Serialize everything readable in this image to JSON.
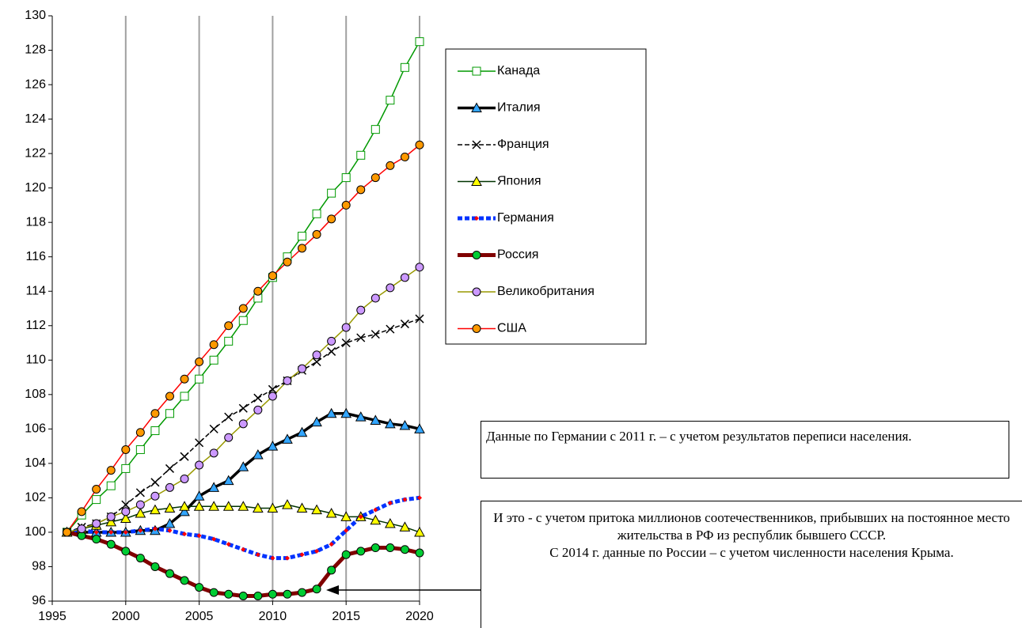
{
  "chart_data": {
    "type": "line",
    "x": [
      1996,
      1997,
      1998,
      1999,
      2000,
      2001,
      2002,
      2003,
      2004,
      2005,
      2006,
      2007,
      2008,
      2009,
      2010,
      2011,
      2012,
      2013,
      2014,
      2015,
      2016,
      2017,
      2018,
      2019,
      2020
    ],
    "xlim": [
      1995,
      2020
    ],
    "xticks": [
      1995,
      2000,
      2005,
      2010,
      2015,
      2020
    ],
    "ylim": [
      96,
      130
    ],
    "yticks": [
      96,
      98,
      100,
      102,
      104,
      106,
      108,
      110,
      112,
      114,
      116,
      118,
      120,
      122,
      124,
      126,
      128,
      130
    ],
    "grid": "x",
    "series": [
      {
        "name": "Канада",
        "color": "#009900",
        "marker": "square",
        "marker_color": "#ffffff",
        "dash": false,
        "values": [
          100,
          101.0,
          101.9,
          102.7,
          103.7,
          104.8,
          105.9,
          106.9,
          107.9,
          108.9,
          110.0,
          111.1,
          112.3,
          113.6,
          114.8,
          116.0,
          117.2,
          118.5,
          119.7,
          120.6,
          121.9,
          123.4,
          125.1,
          127.0,
          128.5
        ]
      },
      {
        "name": "Италия",
        "color": "#000000",
        "marker": "triangle",
        "marker_color": "#33a6ff",
        "dash": false,
        "values": [
          100,
          100.0,
          100.0,
          100.0,
          100.0,
          100.1,
          100.1,
          100.5,
          101.2,
          102.1,
          102.6,
          103.0,
          103.8,
          104.5,
          105.0,
          105.4,
          105.8,
          106.4,
          106.9,
          106.9,
          106.7,
          106.5,
          106.3,
          106.2,
          106.0
        ]
      },
      {
        "name": "Франция",
        "color": "#000000",
        "marker": "x",
        "marker_color": "#000000",
        "dash": true,
        "values": [
          100,
          100.3,
          100.5,
          100.9,
          101.6,
          102.3,
          102.9,
          103.7,
          104.4,
          105.2,
          106.0,
          106.7,
          107.2,
          107.8,
          108.3,
          108.8,
          109.4,
          109.9,
          110.5,
          111.0,
          111.3,
          111.5,
          111.8,
          112.1,
          112.4
        ]
      },
      {
        "name": "Япония",
        "color": "#003300",
        "marker": "triangle",
        "marker_color": "#ffff00",
        "dash": false,
        "values": [
          100,
          100.2,
          100.4,
          100.6,
          100.8,
          101.1,
          101.3,
          101.4,
          101.5,
          101.5,
          101.5,
          101.5,
          101.5,
          101.4,
          101.4,
          101.6,
          101.4,
          101.3,
          101.1,
          100.9,
          100.9,
          100.7,
          100.5,
          100.3,
          100.0
        ]
      },
      {
        "name": "Германия",
        "color": "#0033ff",
        "marker": "diamond",
        "marker_color": "#ff0000",
        "dash": true,
        "values": [
          100,
          100.1,
          100.0,
          100.0,
          100.0,
          100.1,
          100.2,
          100.1,
          99.9,
          99.8,
          99.6,
          99.3,
          99.0,
          98.7,
          98.5,
          98.5,
          98.7,
          98.9,
          99.3,
          100.1,
          100.9,
          101.3,
          101.7,
          101.9,
          102.0
        ]
      },
      {
        "name": "Россия",
        "color": "#800000",
        "marker": "circle",
        "marker_color": "#00cc33",
        "dash": false,
        "values": [
          100,
          99.8,
          99.6,
          99.3,
          98.9,
          98.5,
          98.0,
          97.6,
          97.2,
          96.8,
          96.5,
          96.4,
          96.3,
          96.3,
          96.4,
          96.4,
          96.5,
          96.7,
          97.8,
          98.7,
          98.9,
          99.1,
          99.1,
          99.0,
          98.8
        ]
      },
      {
        "name": "Великобритания",
        "color": "#999900",
        "marker": "circle",
        "marker_color": "#cc99ff",
        "dash": false,
        "values": [
          100,
          100.2,
          100.5,
          100.9,
          101.2,
          101.6,
          102.1,
          102.6,
          103.1,
          103.9,
          104.6,
          105.5,
          106.3,
          107.1,
          107.9,
          108.8,
          109.5,
          110.3,
          111.1,
          111.9,
          112.9,
          113.6,
          114.2,
          114.8,
          115.4
        ]
      },
      {
        "name": "США",
        "color": "#ff0000",
        "marker": "circle",
        "marker_color": "#ff9900",
        "dash": false,
        "values": [
          100,
          101.2,
          102.5,
          103.6,
          104.8,
          105.8,
          106.9,
          107.9,
          108.9,
          109.9,
          110.9,
          112.0,
          113.0,
          114.0,
          114.9,
          115.7,
          116.5,
          117.3,
          118.2,
          119.0,
          119.9,
          120.6,
          121.3,
          121.8,
          122.5
        ]
      }
    ],
    "annotations": [
      "Данные по Германии с 2011 г. – с учетом результатов переписи населения.",
      "И это - с учетом притока миллионов соотечественников, прибывших на постоянное место жительства в РФ из республик бывшего СССР.",
      "С 2014 г. данные по России – с учетом численности населения Крыма."
    ]
  }
}
